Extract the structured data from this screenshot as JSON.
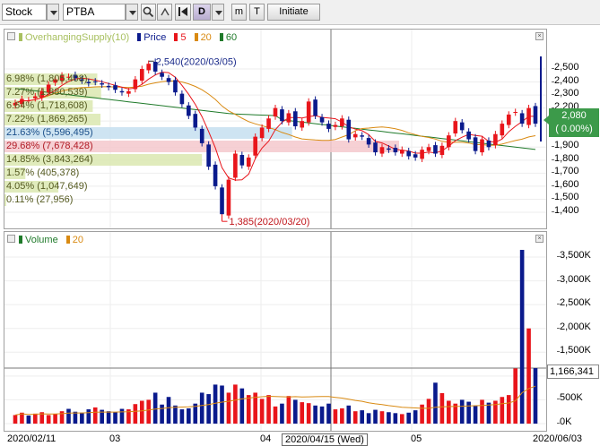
{
  "toolbar": {
    "type_value": "Stock",
    "symbol_value": "PTBA",
    "search_icon": "magnifier-icon",
    "first_icon": "skip-to-start-icon",
    "period_label": "D",
    "btn_m": "m",
    "btn_t": "T",
    "initiate_label": "Initiate"
  },
  "price_pane": {
    "legend": {
      "overhang": "OverhangingSupply(10)",
      "price": "Price",
      "ma5": "5",
      "ma20": "20",
      "ma60": "60"
    },
    "y_ticks": [
      "2,500",
      "2,400",
      "2,300",
      "2,200",
      "2,100",
      "1,900",
      "1,800",
      "1,700",
      "1,600",
      "1,500",
      "1,400"
    ],
    "last_price": "2,080",
    "last_change": "( 0.00%)",
    "high_note": "2,540(2020/03/05)",
    "low_note": "1,385(2020/03/20)",
    "overhanging_supply": [
      {
        "label": "6.98% (1,805,408)",
        "pct": 6.98,
        "color": "#dbe8b0"
      },
      {
        "label": "7.27% (1,880,539)",
        "pct": 7.27,
        "color": "#dbe8b0"
      },
      {
        "label": "6.64% (1,718,608)",
        "pct": 6.64,
        "color": "#dbe8b0"
      },
      {
        "label": "7.22% (1,869,265)",
        "pct": 7.22,
        "color": "#dbe8b0"
      },
      {
        "label": "21.63% (5,596,495)",
        "pct": 21.63,
        "color": "#c5dff0"
      },
      {
        "label": "29.68% (7,678,428)",
        "pct": 29.68,
        "color": "#f5c8cc"
      },
      {
        "label": "14.85% (3,843,264)",
        "pct": 14.85,
        "color": "#dbe8b0"
      },
      {
        "label": "1.57% (405,378)",
        "pct": 1.57,
        "color": "#dbe8b0"
      },
      {
        "label": "4.05% (1,047,649)",
        "pct": 4.05,
        "color": "#dbe8b0"
      },
      {
        "label": "0.11% (27,956)",
        "pct": 0.11,
        "color": "#dbe8b0"
      }
    ]
  },
  "volume_pane": {
    "legend": {
      "volume": "Volume",
      "ma20": "20"
    },
    "y_ticks": [
      "3,500K",
      "3,000K",
      "2,500K",
      "2,000K",
      "1,500K",
      "1,000K",
      "500K",
      "0K"
    ],
    "current_value": "1,166,341"
  },
  "x_axis": {
    "labels": [
      "2020/02/11",
      "03",
      "04",
      "05",
      "2020/06/03"
    ],
    "crosshair_date": "2020/04/15 (Wed)"
  },
  "colors": {
    "up": "#e8151b",
    "down": "#0a1a8c",
    "ma5": "#e8151b",
    "ma20": "#d98a12",
    "ma60": "#1f7a2a",
    "overhang": "#a8c060",
    "badge": "#3c9a4a"
  },
  "chart_data": {
    "type": "candlestick",
    "title": "",
    "series": [
      {
        "name": "Price",
        "values": [
          2240,
          2270,
          2260,
          2290,
          2330,
          2380,
          2420,
          2450,
          2440,
          2430,
          2410,
          2390,
          2400,
          2380,
          2360,
          2340,
          2320,
          2330,
          2420,
          2500,
          2540,
          2480,
          2440,
          2400,
          2320,
          2230,
          2140,
          2050,
          1930,
          1750,
          1600,
          1385,
          1650,
          1850,
          1760,
          1820,
          1980,
          2050,
          2120,
          2200,
          2100,
          2160,
          2060,
          2100,
          2250,
          2140,
          2090,
          2040,
          2070,
          2120,
          1960,
          2000,
          1980,
          1920,
          1860,
          1900,
          1880,
          1860,
          1880,
          1830,
          1820,
          1880,
          1900,
          1850,
          1910,
          1990,
          2100,
          2030,
          1960,
          1870,
          1960,
          1900,
          2000,
          2080,
          2150,
          2170,
          2080,
          2200,
          2080
        ]
      },
      {
        "name": "Volume",
        "values": [
          180,
          230,
          170,
          210,
          240,
          180,
          200,
          260,
          310,
          250,
          230,
          300,
          340,
          290,
          260,
          240,
          310,
          300,
          410,
          480,
          500,
          650,
          400,
          560,
          380,
          300,
          320,
          420,
          650,
          620,
          820,
          800,
          650,
          820,
          740,
          600,
          650,
          520,
          600,
          360,
          420,
          580,
          500,
          450,
          430,
          380,
          360,
          420,
          300,
          320,
          380,
          260,
          280,
          220,
          290,
          260,
          240,
          220,
          200,
          230,
          280,
          400,
          520,
          860,
          640,
          480,
          420,
          500,
          460,
          380,
          500,
          440,
          480,
          560,
          600,
          1160,
          3650,
          2000,
          1166
        ]
      }
    ],
    "xlabel": "",
    "ylabel": "",
    "y_range_price": [
      1385,
      2540
    ],
    "y_range_volume": [
      0,
      3650
    ]
  }
}
